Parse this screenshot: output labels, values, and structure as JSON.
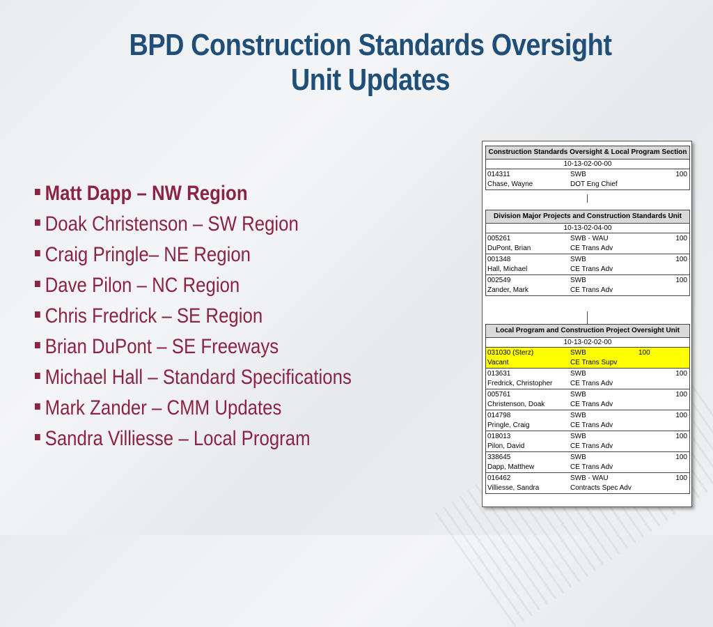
{
  "title": {
    "line1": "BPD Construction Standards Oversight",
    "line2": "Unit Updates"
  },
  "bullets": [
    "Matt Dapp – NW Region",
    "Doak Christenson – SW Region",
    "Craig Pringle– NE Region",
    "Dave Pilon – NC Region",
    "Chris Fredrick – SE Region",
    "Brian DuPont – SE Freeways",
    "Michael Hall – Standard Specifications",
    "Mark Zander – CMM Updates",
    "Sandra Villiesse – Local Program"
  ],
  "org": {
    "section": {
      "header": "Construction Standards Oversight & Local Program Section",
      "code": "10-13-02-00-00",
      "rows": [
        {
          "pos": "014311",
          "name": "Chase, Wayne",
          "class": "SWB",
          "title": "DOT Eng Chief",
          "pct": "100"
        }
      ]
    },
    "division": {
      "header": "Division Major Projects and Construction Standards Unit",
      "code": "10-13-02-04-00",
      "rows": [
        {
          "pos": "005261",
          "name": "DuPont, Brian",
          "class": "SWB - WAU",
          "title": "CE Trans Adv",
          "pct": "100"
        },
        {
          "pos": "001348",
          "name": "Hall, Michael",
          "class": "SWB",
          "title": "CE Trans Adv",
          "pct": "100"
        },
        {
          "pos": "002549",
          "name": "Zander, Mark",
          "class": "SWB",
          "title": "CE Trans Adv",
          "pct": "100"
        }
      ]
    },
    "local": {
      "header": "Local Program and Construction Project Oversight Unit",
      "code": "10-13-02-02-00",
      "rows": [
        {
          "pos": "031030 (Sterz)",
          "name": "Vacant",
          "class": "SWB",
          "title": "CE Trans Supv",
          "pct": "100",
          "highlight": true
        },
        {
          "pos": "013631",
          "name": "Fredrick, Christopher",
          "class": "SWB",
          "title": "CE Trans Adv",
          "pct": "100"
        },
        {
          "pos": "005761",
          "name": "Christenson, Doak",
          "class": "SWB",
          "title": "CE Trans Adv",
          "pct": "100"
        },
        {
          "pos": "014798",
          "name": "Pringle, Craig",
          "class": "SWB",
          "title": "CE Trans Adv",
          "pct": "100"
        },
        {
          "pos": "018013",
          "name": "Pilon, David",
          "class": "SWB",
          "title": "CE Trans Adv",
          "pct": "100"
        },
        {
          "pos": "338645",
          "name": "Dapp, Matthew",
          "class": "SWB",
          "title": "CE Trans Adv",
          "pct": "100"
        },
        {
          "pos": "016462",
          "name": "Villiesse, Sandra",
          "class": "SWB - WAU",
          "title": "Contracts Spec Adv",
          "pct": "100"
        }
      ]
    }
  }
}
